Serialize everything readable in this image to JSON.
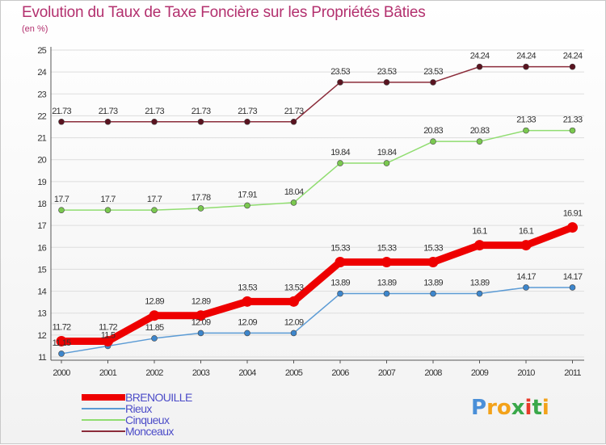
{
  "header": {
    "title": "Evolution du Taux de Taxe Foncière sur les Propriétés Bâties",
    "unit": "(en %)"
  },
  "chart_data": {
    "type": "line",
    "title": "Evolution du Taux de Taxe Foncière sur les Propriétés Bâties",
    "ylabel": "(en %)",
    "xlabel": "",
    "ylim": [
      11,
      25
    ],
    "yticks": [
      "11",
      "12",
      "13",
      "14",
      "15",
      "16",
      "17",
      "18",
      "19",
      "20",
      "21",
      "22",
      "23",
      "24",
      "25"
    ],
    "categories": [
      "2000",
      "2001",
      "2002",
      "2003",
      "2004",
      "2005",
      "2006",
      "2007",
      "2008",
      "2009",
      "2010",
      "2011"
    ],
    "grid": "horizontal",
    "legend_position": "bottom-left",
    "series": [
      {
        "name": "BRENOUILLE",
        "color": "#ee0000",
        "values": [
          11.72,
          11.72,
          12.89,
          12.89,
          13.53,
          13.53,
          15.33,
          15.33,
          15.33,
          16.1,
          16.1,
          16.91
        ],
        "labels": [
          "11.72",
          "11.72",
          "12.89",
          "12.89",
          "13.53",
          "13.53",
          "15.33",
          "15.33",
          "15.33",
          "16.1",
          "16.1",
          "16.91"
        ]
      },
      {
        "name": "Rieux",
        "color": "#5b9bd5",
        "values": [
          11.15,
          11.5,
          11.85,
          12.09,
          12.09,
          12.09,
          13.89,
          13.89,
          13.89,
          13.89,
          14.17,
          14.17
        ],
        "labels": [
          "11.15",
          "11.5",
          "11.85",
          "12.09",
          "12.09",
          "12.09",
          "13.89",
          "13.89",
          "13.89",
          "13.89",
          "14.17",
          "14.17"
        ]
      },
      {
        "name": "Cinqueux",
        "color": "#90dd70",
        "values": [
          17.7,
          17.7,
          17.7,
          17.78,
          17.91,
          18.04,
          19.84,
          19.84,
          20.83,
          20.83,
          21.33,
          21.33
        ],
        "labels": [
          "17.7",
          "17.7",
          "17.7",
          "17.78",
          "17.91",
          "18.04",
          "19.84",
          "19.84",
          "20.83",
          "20.83",
          "21.33",
          "21.33"
        ]
      },
      {
        "name": "Monceaux",
        "color": "#8b2c3a",
        "values": [
          21.73,
          21.73,
          21.73,
          21.73,
          21.73,
          21.73,
          23.53,
          23.53,
          23.53,
          24.24,
          24.24,
          24.24
        ],
        "labels": [
          "21.73",
          "21.73",
          "21.73",
          "21.73",
          "21.73",
          "21.73",
          "23.53",
          "23.53",
          "23.53",
          "24.24",
          "24.24",
          "24.24"
        ]
      }
    ]
  },
  "brand": {
    "letters": [
      "P",
      "r",
      "o",
      "x",
      "i",
      "t",
      "i"
    ],
    "colors": [
      "#4a8fd8",
      "#f3a21a",
      "#f3a21a",
      "#3aa84a",
      "#e83a2a",
      "#3aa84a",
      "#f3a21a"
    ]
  }
}
